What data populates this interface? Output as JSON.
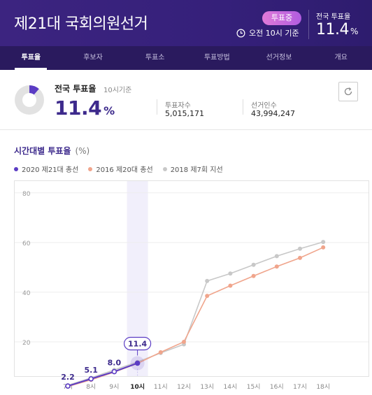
{
  "header": {
    "title": "제21대 국회의원선거",
    "badge": "투표중",
    "time": "오전 10시 기준",
    "national_label": "전국 투표율",
    "national_value": "11.4",
    "national_unit": "%"
  },
  "tabs": [
    "투표율",
    "후보자",
    "투표소",
    "투표방법",
    "선거정보",
    "개요"
  ],
  "summary": {
    "title": "전국 투표율",
    "subtitle": "10시기준",
    "value": "11.4",
    "unit": "%",
    "voters_label": "투표자수",
    "voters_value": "5,015,171",
    "electorate_label": "선거인수",
    "electorate_value": "43,994,247"
  },
  "chart_section": {
    "title": "시간대별 투표율",
    "unit": "(%)"
  },
  "colors": {
    "series_2020": "#5b3cc4",
    "series_2016": "#f0a58c",
    "series_2018": "#c8c8c8"
  },
  "chart_data": {
    "type": "line",
    "categories": [
      "7시",
      "8시",
      "9시",
      "10시",
      "11시",
      "12시",
      "13시",
      "14시",
      "15시",
      "16시",
      "17시",
      "18시"
    ],
    "highlight_category": "10시",
    "yticks": [
      20,
      40,
      60,
      80
    ],
    "ylim": [
      0,
      85
    ],
    "grid": true,
    "legend_position": "top-left",
    "series": [
      {
        "name": "2020 제21대 총선",
        "values": [
          2.2,
          5.1,
          8.0,
          11.4,
          null,
          null,
          null,
          null,
          null,
          null,
          null,
          null
        ],
        "labels": [
          "2.2",
          "5.1",
          "8.0",
          "11.4"
        ]
      },
      {
        "name": "2016 제20대 총선",
        "values": [
          2.0,
          4.7,
          7.8,
          11.3,
          15.8,
          20.0,
          38.5,
          42.6,
          46.5,
          50.3,
          53.8,
          58.0
        ]
      },
      {
        "name": "2018 제7회 지선",
        "values": [
          2.5,
          5.5,
          8.7,
          11.9,
          15.5,
          19.0,
          44.5,
          47.5,
          51.0,
          54.5,
          57.5,
          60.2
        ]
      }
    ]
  }
}
